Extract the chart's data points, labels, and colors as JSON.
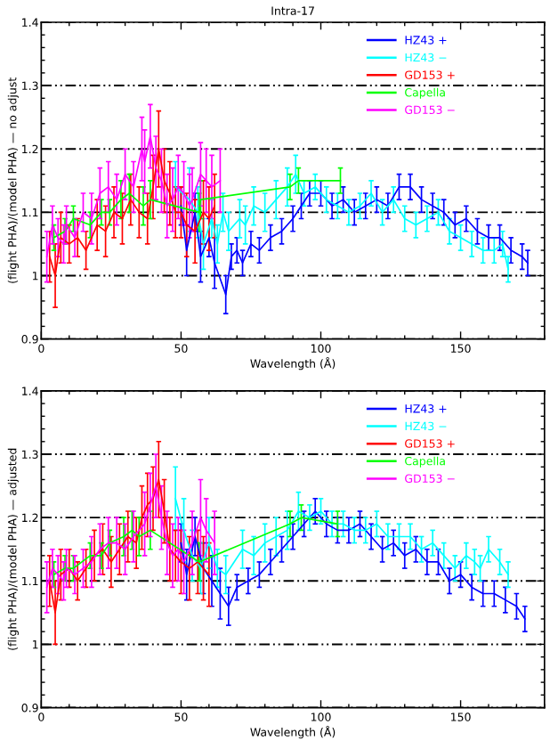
{
  "chart_data": [
    {
      "type": "line",
      "title": "Intra-17",
      "xlabel": "Wavelength (Å)",
      "ylabel": "(flight PHA)/(model PHA) — no adjust",
      "xlim": [
        0,
        180
      ],
      "xticks": [
        0,
        50,
        100,
        150
      ],
      "ylim": [
        0.9,
        1.4
      ],
      "yticks": [
        0.9,
        1,
        1.1,
        1.2,
        1.3,
        1.4
      ],
      "grid": "y",
      "legend": "top right",
      "line_style": "solid",
      "marker": "none",
      "series": [
        {
          "name": "HZ43 +",
          "color": "#0000ff",
          "x": [
            50,
            52,
            55,
            57,
            60,
            62,
            66,
            68,
            70,
            72,
            75,
            78,
            82,
            86,
            90,
            93,
            96,
            100,
            104,
            108,
            112,
            116,
            120,
            124,
            128,
            132,
            136,
            140,
            144,
            148,
            152,
            156,
            160,
            164,
            168,
            172,
            174
          ],
          "values": [
            1.11,
            1.04,
            1.1,
            1.03,
            1.06,
            1.02,
            0.97,
            1.03,
            1.04,
            1.02,
            1.05,
            1.04,
            1.06,
            1.07,
            1.09,
            1.11,
            1.13,
            1.13,
            1.11,
            1.12,
            1.1,
            1.11,
            1.12,
            1.11,
            1.14,
            1.14,
            1.12,
            1.11,
            1.1,
            1.08,
            1.09,
            1.07,
            1.06,
            1.06,
            1.04,
            1.03,
            1.02
          ],
          "errors": [
            0.03,
            0.04,
            0.03,
            0.04,
            0.03,
            0.04,
            0.03,
            0.02,
            0.02,
            0.02,
            0.02,
            0.02,
            0.02,
            0.02,
            0.02,
            0.02,
            0.02,
            0.02,
            0.02,
            0.02,
            0.02,
            0.02,
            0.02,
            0.02,
            0.02,
            0.02,
            0.02,
            0.02,
            0.02,
            0.02,
            0.02,
            0.02,
            0.02,
            0.02,
            0.02,
            0.02,
            0.02
          ]
        },
        {
          "name": "HZ43 −",
          "color": "#00ffff",
          "x": [
            48,
            53,
            56,
            58,
            61,
            63,
            65,
            67,
            71,
            73,
            76,
            80,
            84,
            88,
            91,
            94,
            98,
            102,
            106,
            110,
            114,
            118,
            122,
            126,
            130,
            134,
            138,
            142,
            146,
            150,
            154,
            158,
            162,
            165,
            167
          ],
          "values": [
            1.14,
            1.12,
            1.1,
            1.05,
            1.09,
            1.05,
            1.1,
            1.07,
            1.09,
            1.08,
            1.11,
            1.1,
            1.12,
            1.14,
            1.16,
            1.13,
            1.14,
            1.12,
            1.11,
            1.1,
            1.11,
            1.13,
            1.1,
            1.12,
            1.09,
            1.08,
            1.09,
            1.1,
            1.07,
            1.06,
            1.05,
            1.04,
            1.04,
            1.05,
            1.01
          ],
          "errors": [
            0.04,
            0.05,
            0.04,
            0.04,
            0.03,
            0.03,
            0.03,
            0.03,
            0.03,
            0.03,
            0.03,
            0.03,
            0.03,
            0.03,
            0.03,
            0.02,
            0.02,
            0.02,
            0.02,
            0.02,
            0.02,
            0.02,
            0.02,
            0.02,
            0.02,
            0.02,
            0.02,
            0.02,
            0.02,
            0.02,
            0.02,
            0.02,
            0.02,
            0.02,
            0.02
          ]
        },
        {
          "name": "GD153 +",
          "color": "#ff0000",
          "x": [
            3,
            5,
            7,
            10,
            13,
            16,
            20,
            23,
            26,
            29,
            32,
            35,
            38,
            40,
            42,
            44,
            46,
            48,
            50,
            52,
            55,
            58,
            60,
            62
          ],
          "values": [
            1.03,
            1.0,
            1.06,
            1.05,
            1.06,
            1.04,
            1.08,
            1.07,
            1.1,
            1.09,
            1.12,
            1.1,
            1.09,
            1.14,
            1.2,
            1.15,
            1.13,
            1.1,
            1.1,
            1.08,
            1.07,
            1.1,
            1.09,
            1.11
          ],
          "errors": [
            0.04,
            0.05,
            0.04,
            0.03,
            0.03,
            0.03,
            0.04,
            0.04,
            0.04,
            0.04,
            0.04,
            0.04,
            0.04,
            0.05,
            0.06,
            0.05,
            0.05,
            0.04,
            0.04,
            0.05,
            0.05,
            0.05,
            0.05,
            0.05
          ]
        },
        {
          "name": "Capella",
          "color": "#00ff00",
          "x": [
            4.5,
            8.5,
            11.5,
            17.5,
            21.5,
            24.5,
            28.5,
            31.5,
            36.5,
            39,
            56.5,
            57,
            89,
            92,
            107
          ],
          "values": [
            1.06,
            1.07,
            1.09,
            1.08,
            1.1,
            1.1,
            1.12,
            1.13,
            1.11,
            1.12,
            1.1,
            1.12,
            1.14,
            1.15,
            1.15
          ],
          "errors": [
            0.02,
            0.02,
            0.02,
            0.02,
            0.02,
            0.02,
            0.03,
            0.03,
            0.03,
            0.03,
            0.03,
            0.03,
            0.02,
            0.02,
            0.02
          ]
        },
        {
          "name": "GD153 −",
          "color": "#ff00ff",
          "x": [
            2,
            4,
            6,
            8,
            9,
            12,
            15,
            18,
            21,
            24,
            27,
            30,
            33,
            36,
            37,
            39,
            41,
            43,
            45,
            47,
            49,
            51,
            53,
            54,
            57,
            59,
            61,
            64
          ],
          "values": [
            1.03,
            1.08,
            1.06,
            1.05,
            1.08,
            1.06,
            1.1,
            1.09,
            1.13,
            1.14,
            1.12,
            1.16,
            1.14,
            1.2,
            1.18,
            1.22,
            1.17,
            1.15,
            1.11,
            1.12,
            1.14,
            1.13,
            1.11,
            1.12,
            1.16,
            1.15,
            1.14,
            1.15
          ],
          "errors": [
            0.04,
            0.03,
            0.03,
            0.03,
            0.03,
            0.03,
            0.03,
            0.04,
            0.04,
            0.04,
            0.04,
            0.04,
            0.04,
            0.05,
            0.05,
            0.05,
            0.05,
            0.05,
            0.05,
            0.05,
            0.05,
            0.05,
            0.05,
            0.05,
            0.05,
            0.05,
            0.05,
            0.05
          ]
        }
      ]
    },
    {
      "type": "line",
      "xlabel": "Wavelength (Å)",
      "ylabel": "(flight PHA)/(model PHA) — adjusted",
      "xlim": [
        0,
        180
      ],
      "xticks": [
        0,
        50,
        100,
        150
      ],
      "ylim": [
        0.9,
        1.4
      ],
      "yticks": [
        0.9,
        1,
        1.1,
        1.2,
        1.3,
        1.4
      ],
      "grid": "y",
      "legend": "top right",
      "line_style": "solid",
      "marker": "none",
      "series": [
        {
          "name": "HZ43 +",
          "color": "#0000ff",
          "x": [
            50,
            52,
            55,
            58,
            61,
            64,
            67,
            70,
            74,
            78,
            82,
            86,
            90,
            94,
            98,
            102,
            106,
            110,
            114,
            118,
            122,
            126,
            130,
            134,
            138,
            142,
            146,
            150,
            154,
            158,
            162,
            166,
            170,
            173
          ],
          "values": [
            1.16,
            1.11,
            1.17,
            1.12,
            1.1,
            1.08,
            1.06,
            1.09,
            1.1,
            1.11,
            1.13,
            1.15,
            1.17,
            1.19,
            1.21,
            1.19,
            1.18,
            1.18,
            1.19,
            1.17,
            1.15,
            1.16,
            1.14,
            1.15,
            1.13,
            1.13,
            1.1,
            1.11,
            1.09,
            1.08,
            1.08,
            1.07,
            1.06,
            1.04
          ],
          "errors": [
            0.03,
            0.04,
            0.03,
            0.04,
            0.04,
            0.04,
            0.03,
            0.02,
            0.02,
            0.02,
            0.02,
            0.02,
            0.02,
            0.02,
            0.02,
            0.02,
            0.02,
            0.02,
            0.02,
            0.02,
            0.02,
            0.02,
            0.02,
            0.02,
            0.02,
            0.02,
            0.02,
            0.02,
            0.02,
            0.02,
            0.02,
            0.02,
            0.02,
            0.02
          ]
        },
        {
          "name": "HZ43 −",
          "color": "#00ffff",
          "x": [
            48,
            51,
            54,
            57,
            60,
            63,
            66,
            72,
            76,
            80,
            84,
            88,
            92,
            96,
            100,
            104,
            108,
            112,
            116,
            120,
            124,
            128,
            132,
            136,
            140,
            144,
            148,
            152,
            155,
            157,
            160,
            164,
            167
          ],
          "values": [
            1.23,
            1.18,
            1.14,
            1.12,
            1.16,
            1.12,
            1.11,
            1.15,
            1.14,
            1.16,
            1.17,
            1.18,
            1.21,
            1.2,
            1.21,
            1.19,
            1.19,
            1.18,
            1.18,
            1.19,
            1.17,
            1.17,
            1.17,
            1.15,
            1.16,
            1.14,
            1.12,
            1.14,
            1.13,
            1.12,
            1.15,
            1.13,
            1.11
          ],
          "errors": [
            0.05,
            0.05,
            0.04,
            0.04,
            0.04,
            0.03,
            0.03,
            0.03,
            0.03,
            0.03,
            0.03,
            0.03,
            0.03,
            0.02,
            0.02,
            0.02,
            0.02,
            0.02,
            0.02,
            0.02,
            0.02,
            0.02,
            0.02,
            0.02,
            0.02,
            0.02,
            0.02,
            0.02,
            0.02,
            0.02,
            0.02,
            0.02,
            0.02
          ]
        },
        {
          "name": "GD153 +",
          "color": "#ff0000",
          "x": [
            3,
            5,
            7,
            10,
            13,
            16,
            19,
            22,
            25,
            28,
            31,
            34,
            36,
            38,
            40,
            42,
            44,
            46,
            48,
            50,
            53,
            56,
            58,
            60
          ],
          "values": [
            1.1,
            1.05,
            1.11,
            1.12,
            1.1,
            1.12,
            1.14,
            1.15,
            1.13,
            1.15,
            1.17,
            1.16,
            1.2,
            1.22,
            1.23,
            1.26,
            1.21,
            1.15,
            1.14,
            1.13,
            1.12,
            1.13,
            1.12,
            1.11
          ],
          "errors": [
            0.04,
            0.05,
            0.04,
            0.03,
            0.03,
            0.03,
            0.04,
            0.04,
            0.04,
            0.04,
            0.04,
            0.04,
            0.05,
            0.05,
            0.05,
            0.06,
            0.05,
            0.05,
            0.04,
            0.05,
            0.05,
            0.05,
            0.05,
            0.05
          ]
        },
        {
          "name": "Capella",
          "color": "#00ff00",
          "x": [
            4.5,
            8.5,
            11.5,
            17.5,
            21.5,
            24.5,
            29.5,
            32.5,
            35,
            39,
            56.5,
            89,
            93,
            106
          ],
          "values": [
            1.11,
            1.12,
            1.12,
            1.14,
            1.14,
            1.16,
            1.17,
            1.18,
            1.17,
            1.18,
            1.13,
            1.19,
            1.2,
            1.19
          ],
          "errors": [
            0.02,
            0.02,
            0.02,
            0.02,
            0.02,
            0.02,
            0.03,
            0.03,
            0.03,
            0.03,
            0.03,
            0.02,
            0.02,
            0.02
          ]
        },
        {
          "name": "GD153 −",
          "color": "#ff00ff",
          "x": [
            2,
            4,
            6,
            8,
            9,
            12,
            15,
            18,
            21,
            24,
            27,
            30,
            33,
            37,
            39,
            41,
            43,
            45,
            47,
            49,
            51,
            54,
            57,
            59,
            62
          ],
          "values": [
            1.09,
            1.12,
            1.11,
            1.1,
            1.12,
            1.11,
            1.12,
            1.13,
            1.15,
            1.16,
            1.16,
            1.15,
            1.17,
            1.19,
            1.22,
            1.25,
            1.2,
            1.16,
            1.14,
            1.15,
            1.13,
            1.16,
            1.2,
            1.18,
            1.16
          ],
          "errors": [
            0.04,
            0.03,
            0.03,
            0.03,
            0.03,
            0.03,
            0.03,
            0.04,
            0.04,
            0.04,
            0.04,
            0.04,
            0.04,
            0.05,
            0.05,
            0.05,
            0.05,
            0.05,
            0.05,
            0.05,
            0.05,
            0.05,
            0.06,
            0.05,
            0.05
          ]
        }
      ]
    }
  ]
}
